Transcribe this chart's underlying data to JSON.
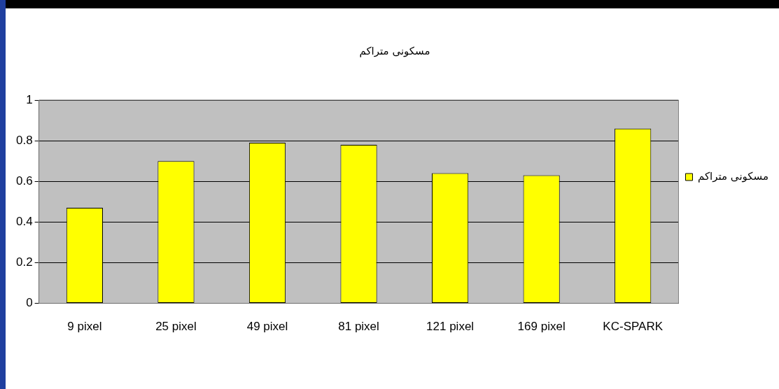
{
  "chart_data": {
    "type": "bar",
    "title": "مسکونی متراکم",
    "categories": [
      "9 pixel",
      "25 pixel",
      "49 pixel",
      "81 pixel",
      "121 pixel",
      "169 pixel",
      "KC-SPARK"
    ],
    "series": [
      {
        "name": "مسکونی متراکم",
        "color": "#ffff00",
        "values": [
          0.47,
          0.7,
          0.79,
          0.78,
          0.64,
          0.63,
          0.86
        ]
      }
    ],
    "ylim": [
      0,
      1
    ],
    "yticks": [
      0,
      0.2,
      0.4,
      0.6,
      0.8,
      1
    ],
    "grid": "y",
    "legend": "right"
  }
}
